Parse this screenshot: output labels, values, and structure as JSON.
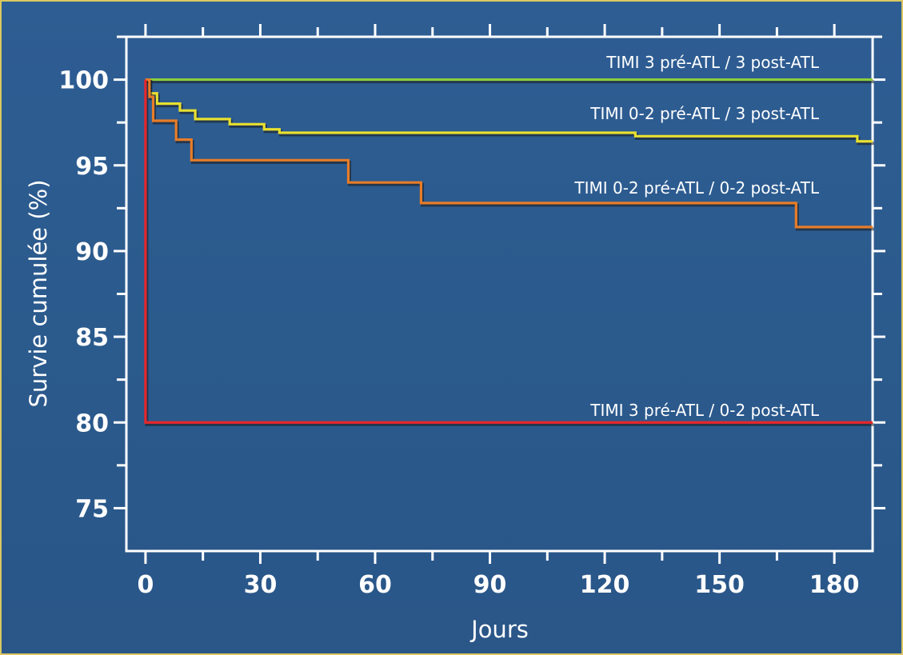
{
  "chart_data": {
    "type": "line",
    "xlabel": "Jours",
    "ylabel": "Survie cumulée (%)",
    "xlim": [
      -5,
      190
    ],
    "ylim": [
      72.5,
      102.5
    ],
    "x_ticks": [
      0,
      30,
      60,
      90,
      120,
      150,
      180
    ],
    "y_ticks": [
      75,
      80,
      85,
      90,
      95,
      100
    ],
    "grid": false,
    "series": [
      {
        "name": "TIMI 3 pré-ATL / 3 post-ATL",
        "color": "#8ccf3c",
        "x": [
          0,
          190
        ],
        "y": [
          100,
          100
        ]
      },
      {
        "name": "TIMI 0-2 pré-ATL / 3 post-ATL",
        "color": "#e8e030",
        "x": [
          0,
          1,
          3,
          9,
          13,
          22,
          31,
          35,
          128,
          186,
          190
        ],
        "y": [
          100,
          99.2,
          98.6,
          98.2,
          97.7,
          97.4,
          97.1,
          96.9,
          96.7,
          96.4,
          96.4
        ]
      },
      {
        "name": "TIMI 0-2 pré-ATL / 0-2 post-ATL",
        "color": "#e87c28",
        "x": [
          0,
          1,
          2,
          8,
          12,
          53,
          72,
          170,
          190
        ],
        "y": [
          100,
          99,
          97.6,
          96.5,
          95.3,
          94.0,
          92.8,
          91.4,
          91.4
        ]
      },
      {
        "name": "TIMI 3 pré-ATL / 0-2 post-ATL",
        "color": "#e8262c",
        "x": [
          0,
          0,
          190
        ],
        "y": [
          100,
          80,
          80
        ]
      }
    ]
  }
}
